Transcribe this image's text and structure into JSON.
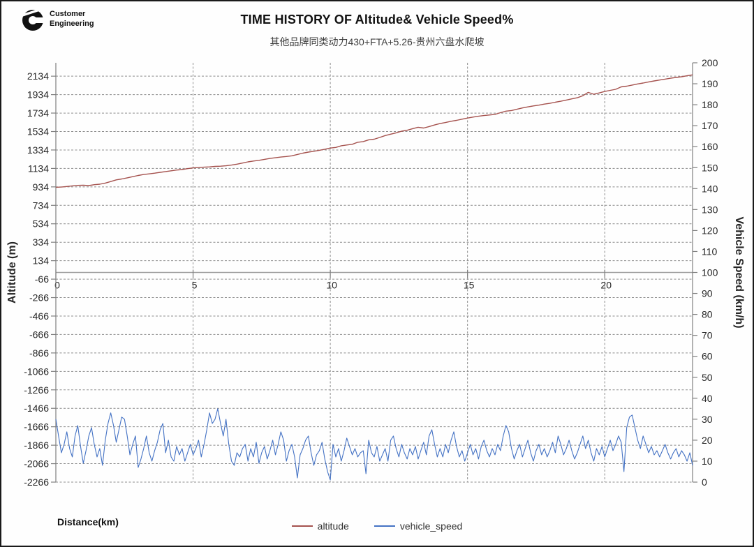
{
  "logo": {
    "line1": "Customer",
    "line2": "Engineering"
  },
  "title": "TIME HISTORY OF Altitude& Vehicle Speed%",
  "subtitle": "其他品牌同类动力430+FTA+5.26-贵州六盘水爬坡",
  "x_axis_title": "Distance(km)",
  "legend": [
    {
      "label": "altitude",
      "color": "#A5524E"
    },
    {
      "label": "vehicle_speed",
      "color": "#4472C4"
    }
  ],
  "chart_data": {
    "type": "line",
    "title": "TIME HISTORY OF Altitude& Vehicle Speed%",
    "xlabel": "Distance(km)",
    "x_ticks": [
      0,
      5,
      10,
      15,
      20
    ],
    "x_range": [
      0,
      23.2
    ],
    "grid": "dashed",
    "legend_position": "bottom",
    "left_axis": {
      "title": "Altitude (m)",
      "ylim": [
        -2266,
        2279
      ],
      "ticks": [
        2134,
        1934,
        1734,
        1534,
        1334,
        1134,
        934,
        734,
        534,
        334,
        134,
        -66,
        -266,
        -466,
        -666,
        -866,
        -1066,
        -1266,
        -1466,
        -1666,
        -1866,
        -2066,
        -2266
      ]
    },
    "right_axis": {
      "title": "Vehicle Speed (km/h)",
      "ylim": [
        0,
        200
      ],
      "ticks": [
        200,
        190,
        180,
        170,
        160,
        150,
        140,
        130,
        120,
        110,
        100,
        90,
        80,
        70,
        60,
        50,
        40,
        30,
        20,
        10,
        0
      ]
    },
    "axis_cross_speed_value": 100,
    "series": [
      {
        "name": "altitude",
        "axis": "left",
        "color": "#A5524E",
        "x_start": 0,
        "x_step": 0.2,
        "values": [
          930,
          932,
          938,
          945,
          950,
          952,
          948,
          958,
          963,
          975,
          992,
          1010,
          1020,
          1032,
          1045,
          1058,
          1068,
          1075,
          1083,
          1092,
          1100,
          1108,
          1117,
          1122,
          1132,
          1140,
          1143,
          1148,
          1151,
          1156,
          1158,
          1163,
          1170,
          1180,
          1192,
          1205,
          1214,
          1222,
          1232,
          1242,
          1250,
          1257,
          1263,
          1271,
          1285,
          1300,
          1311,
          1320,
          1331,
          1342,
          1355,
          1362,
          1380,
          1388,
          1396,
          1418,
          1425,
          1444,
          1451,
          1470,
          1490,
          1505,
          1520,
          1538,
          1548,
          1565,
          1580,
          1572,
          1588,
          1605,
          1620,
          1632,
          1645,
          1655,
          1668,
          1680,
          1691,
          1700,
          1707,
          1713,
          1720,
          1738,
          1755,
          1762,
          1775,
          1790,
          1801,
          1812,
          1820,
          1831,
          1840,
          1852,
          1862,
          1875,
          1888,
          1900,
          1922,
          1958,
          1938,
          1952,
          1968,
          1980,
          1992,
          2018,
          2026,
          2038,
          2050,
          2060,
          2072,
          2082,
          2092,
          2102,
          2112,
          2120,
          2128,
          2138,
          2148
        ]
      },
      {
        "name": "vehicle_speed",
        "axis": "right",
        "color": "#4472C4",
        "x_start": 0,
        "x_step": 0.1,
        "values": [
          30,
          22,
          14,
          18,
          24,
          16,
          12,
          22,
          27,
          17,
          9,
          15,
          22,
          26,
          18,
          12,
          16,
          8,
          20,
          28,
          33,
          27,
          19,
          25,
          31,
          30,
          22,
          13,
          18,
          22,
          7,
          11,
          16,
          22,
          14,
          10,
          15,
          19,
          25,
          28,
          14,
          20,
          12,
          10,
          17,
          13,
          16,
          10,
          14,
          18,
          13,
          16,
          20,
          12,
          18,
          25,
          33,
          28,
          30,
          35,
          28,
          22,
          30,
          18,
          10,
          8,
          14,
          12,
          16,
          18,
          10,
          16,
          12,
          19,
          9,
          14,
          17,
          11,
          15,
          20,
          13,
          18,
          24,
          20,
          10,
          15,
          18,
          12,
          2,
          13,
          16,
          20,
          22,
          14,
          8,
          13,
          15,
          19,
          11,
          5,
          1,
          18,
          12,
          16,
          10,
          15,
          21,
          17,
          13,
          16,
          12,
          14,
          15,
          4,
          20,
          14,
          12,
          17,
          10,
          13,
          16,
          10,
          20,
          22,
          16,
          12,
          18,
          14,
          11,
          16,
          13,
          17,
          11,
          15,
          19,
          13,
          22,
          25,
          18,
          12,
          16,
          12,
          18,
          14,
          20,
          24,
          17,
          12,
          15,
          10,
          14,
          18,
          13,
          16,
          11,
          17,
          20,
          15,
          12,
          16,
          13,
          18,
          15,
          22,
          27,
          24,
          16,
          11,
          15,
          18,
          12,
          16,
          20,
          14,
          10,
          15,
          18,
          13,
          16,
          12,
          15,
          19,
          14,
          22,
          18,
          13,
          16,
          20,
          15,
          11,
          14,
          18,
          22,
          16,
          20,
          14,
          10,
          16,
          13,
          17,
          12,
          16,
          20,
          15,
          18,
          22,
          19,
          5,
          26,
          31,
          32,
          26,
          20,
          16,
          22,
          18,
          14,
          17,
          13,
          15,
          12,
          15,
          18,
          14,
          11,
          14,
          16,
          12,
          15,
          13,
          10,
          14,
          8
        ]
      }
    ]
  }
}
